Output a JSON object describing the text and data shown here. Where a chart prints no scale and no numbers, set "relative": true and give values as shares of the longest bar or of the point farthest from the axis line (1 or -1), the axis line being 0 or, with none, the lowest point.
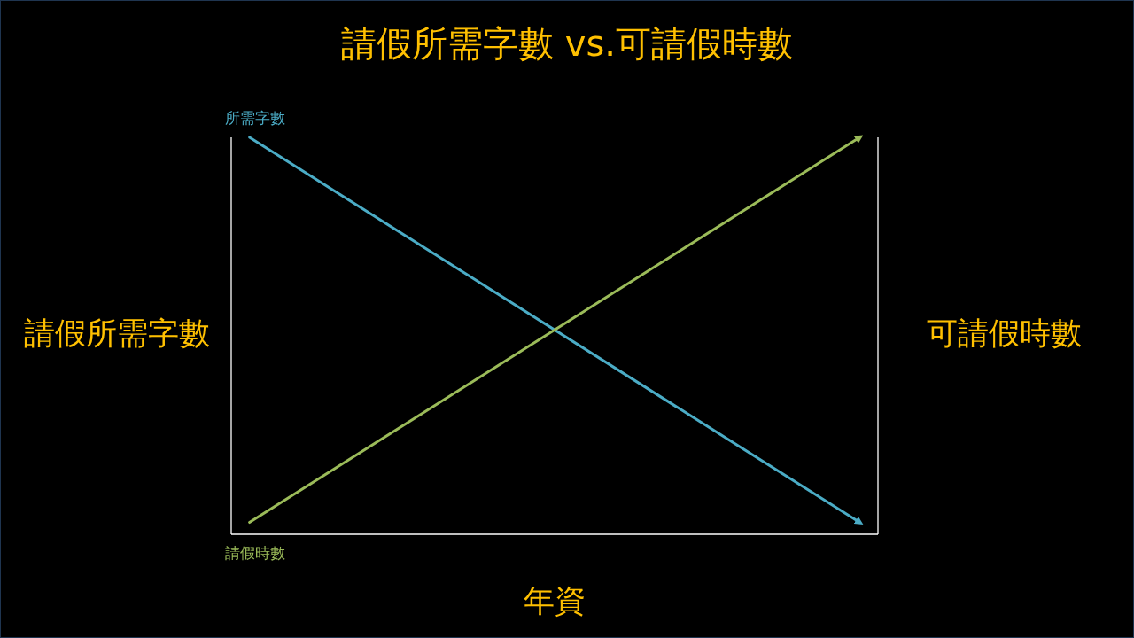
{
  "chart_data": {
    "type": "line",
    "title": "請假所需字數 vs.可請假時數",
    "xlabel": "年資",
    "ylabel": "請假所需字數",
    "y2label": "可請假時數",
    "categories": [
      null,
      null
    ],
    "relative": true,
    "series": [
      {
        "name": "所需字數",
        "color": "#4bacc6",
        "values": [
          1,
          0.03
        ]
      },
      {
        "name": "請假時數",
        "color": "#9bbb59",
        "values": [
          0.03,
          1
        ]
      }
    ]
  }
}
